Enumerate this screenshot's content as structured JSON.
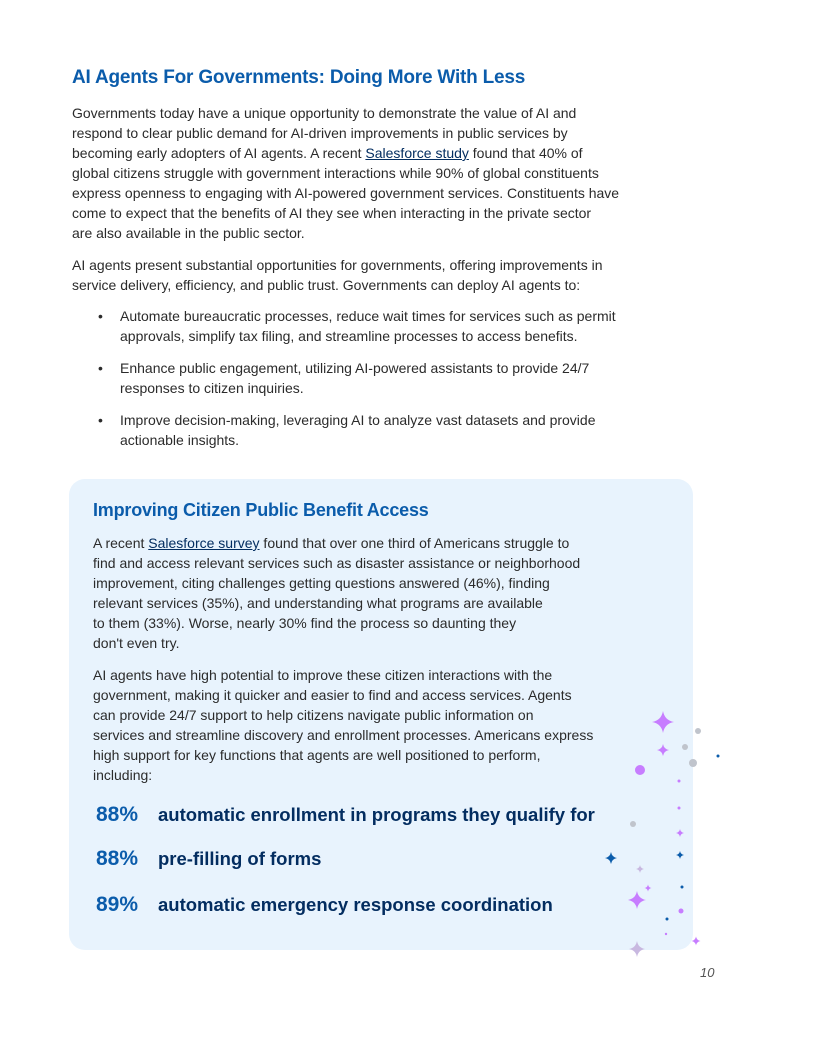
{
  "section": {
    "title": "AI Agents For Governments: Doing More With Less",
    "p1": {
      "l1": "Governments today have a unique opportunity to demonstrate the value of AI and",
      "l2": "respond to clear public demand for AI-driven improvements in public services by",
      "l3_pre": "becoming early adopters of AI agents. A recent ",
      "l3_link": "Salesforce study",
      "l3_post": " found that 40% of",
      "l4": "global citizens struggle with government interactions while 90% of global constituents",
      "l5": "express openness to engaging with AI-powered government services. Constituents have",
      "l6": "come to expect that the benefits of AI they see when interacting in the private sector",
      "l7": "are also available in the public sector."
    },
    "p2": {
      "l1": "AI agents present substantial opportunities for governments, offering improvements in",
      "l2": "service delivery, efficiency, and public trust. Governments can deploy AI agents to:"
    },
    "bullets": [
      {
        "l1": "Automate bureaucratic processes, reduce wait times for services such as permit",
        "l2": "approvals, simplify tax filing, and streamline processes to access benefits."
      },
      {
        "l1": "Enhance public engagement, utilizing AI-powered assistants to provide 24/7",
        "l2": "responses to citizen inquiries."
      },
      {
        "l1": "Improve decision-making, leveraging AI to analyze vast datasets and provide",
        "l2": "actionable insights."
      }
    ],
    "bullet_glyph": "•"
  },
  "callout": {
    "title": "Improving Citizen Public Benefit Access",
    "p1": {
      "l1_pre": "A recent ",
      "l1_link": "Salesforce survey",
      "l1_post": " found that over one third of Americans struggle to",
      "l2": "find and access relevant services such as disaster assistance or neighborhood",
      "l3": "improvement, citing challenges getting questions answered (46%), finding",
      "l4": "relevant services (35%), and understanding what programs are available",
      "l5": "to them (33%). Worse, nearly 30% find the process so daunting they",
      "l6": "don't even try."
    },
    "p2": {
      "l1": "AI agents have high potential to improve these citizen interactions with the",
      "l2": "government, making it quicker and easier to find and access services. Agents",
      "l3": "can provide 24/7 support to help citizens navigate public information on",
      "l4": "services and streamline discovery and enrollment processes. Americans express",
      "l5": "high support for key functions that agents are well positioned to perform,",
      "l6": "including:"
    },
    "stats": [
      {
        "value": "88%",
        "label": "automatic enrollment in programs they qualify for"
      },
      {
        "value": "88%",
        "label": "pre-filling of forms"
      },
      {
        "value": "89%",
        "label": "automatic emergency response coordination"
      }
    ],
    "colors": {
      "background": "#e8f3fd",
      "accent": "#0b5cab",
      "sparkle": "#c77dff"
    }
  },
  "page_number": "10"
}
